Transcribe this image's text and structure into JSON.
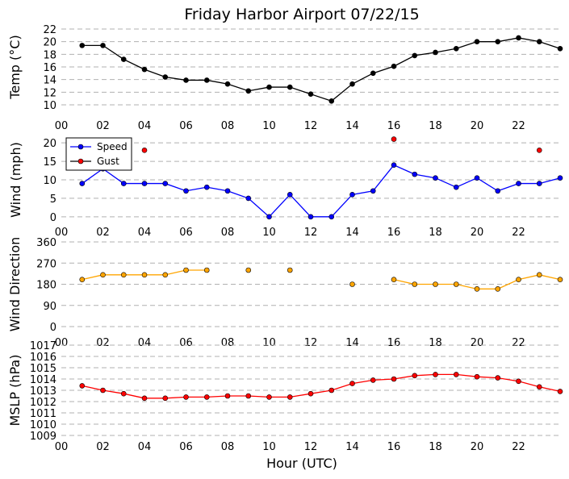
{
  "chart_data": {
    "title": "Friday Harbor Airport 07/22/15",
    "xlabel": "Hour (UTC)",
    "x_ticks": [
      "00",
      "02",
      "04",
      "06",
      "08",
      "10",
      "12",
      "14",
      "16",
      "18",
      "20",
      "22"
    ],
    "x_range": [
      0,
      24
    ],
    "panels": [
      {
        "type": "line",
        "ylabel": "Temp (°C)",
        "ylim": [
          10,
          22
        ],
        "y_ticks": [
          10,
          12,
          14,
          16,
          18,
          20,
          22
        ],
        "grid": true,
        "series": [
          {
            "color": "#000000",
            "x": [
              1,
              2,
              3,
              4,
              5,
              6,
              7,
              8,
              9,
              10,
              11,
              12,
              13,
              14,
              15,
              16,
              17,
              18,
              19,
              20,
              21,
              22,
              23,
              24
            ],
            "y": [
              19.4,
              19.4,
              17.2,
              15.6,
              14.4,
              13.9,
              13.9,
              13.3,
              12.2,
              12.8,
              12.8,
              11.7,
              10.6,
              13.3,
              15.0,
              16.1,
              17.8,
              18.3,
              18.9,
              20.0,
              20.0,
              20.6,
              20.0,
              18.9
            ]
          }
        ]
      },
      {
        "type": "line",
        "ylabel": "Wind (mph)",
        "ylim": [
          -2,
          22
        ],
        "y_ticks": [
          0,
          5,
          10,
          15,
          20
        ],
        "grid": true,
        "legend": "top-left",
        "series": [
          {
            "name": "Speed",
            "color": "#0000ff",
            "marker_color": "#0000ff",
            "x": [
              1,
              2,
              3,
              4,
              5,
              6,
              7,
              8,
              9,
              10,
              11,
              12,
              13,
              14,
              15,
              16,
              17,
              18,
              19,
              20,
              21,
              22,
              23,
              24
            ],
            "y": [
              9,
              13,
              9,
              9,
              9,
              7,
              8,
              7,
              5,
              0,
              6,
              0,
              0,
              6,
              7,
              14,
              11.5,
              10.5,
              8,
              10.5,
              7,
              9,
              9,
              10.5
            ]
          },
          {
            "name": "Gust",
            "color": "#000000",
            "marker_color": "#ff0000",
            "markers_only": true,
            "x": [
              4,
              16,
              23
            ],
            "y": [
              18,
              21,
              18
            ]
          }
        ]
      },
      {
        "type": "line",
        "ylabel": "Wind Direction",
        "ylim": [
          0,
          360
        ],
        "y_ticks": [
          0,
          90,
          180,
          270,
          360
        ],
        "grid": true,
        "series": [
          {
            "color": "#ffa500",
            "marker_color": "#ffa500",
            "points": [
              [
                1,
                200
              ],
              [
                2,
                220
              ],
              [
                3,
                220
              ],
              [
                4,
                220
              ],
              [
                5,
                220
              ],
              [
                6,
                240
              ],
              [
                7,
                240
              ],
              [
                9,
                240
              ],
              [
                11,
                240
              ],
              [
                14,
                180
              ],
              [
                16,
                200
              ],
              [
                17,
                180
              ],
              [
                18,
                180
              ],
              [
                19,
                180
              ],
              [
                20,
                160
              ],
              [
                21,
                160
              ],
              [
                22,
                200
              ],
              [
                23,
                220
              ],
              [
                24,
                200
              ]
            ],
            "segments": [
              [
                1,
                7
              ],
              [
                16,
                24
              ]
            ]
          }
        ]
      },
      {
        "type": "line",
        "ylabel": "MSLP (hPa)",
        "ylim": [
          1009,
          1017
        ],
        "y_ticks": [
          1009,
          1010,
          1011,
          1012,
          1013,
          1014,
          1015,
          1016,
          1017
        ],
        "grid": true,
        "series": [
          {
            "color": "#ff0000",
            "marker_color": "#ff0000",
            "x": [
              1,
              2,
              3,
              4,
              5,
              6,
              7,
              8,
              9,
              10,
              11,
              12,
              13,
              14,
              15,
              16,
              17,
              18,
              19,
              20,
              21,
              22,
              23,
              24
            ],
            "y": [
              1013.4,
              1013.0,
              1012.7,
              1012.3,
              1012.3,
              1012.4,
              1012.4,
              1012.5,
              1012.5,
              1012.4,
              1012.4,
              1012.7,
              1013.0,
              1013.6,
              1013.9,
              1014.0,
              1014.3,
              1014.4,
              1014.4,
              1014.2,
              1014.1,
              1013.8,
              1013.3,
              1012.9
            ]
          }
        ]
      }
    ]
  }
}
